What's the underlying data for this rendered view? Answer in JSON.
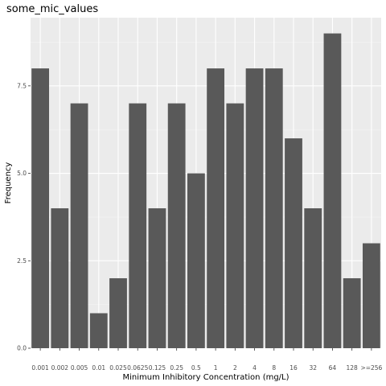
{
  "colors": {
    "panel": "#ebebeb",
    "grid_major": "#ffffff",
    "grid_minor": "#f5f5f5",
    "bar": "#595959",
    "tick": "#333333"
  },
  "chart_data": {
    "type": "bar",
    "title": "some_mic_values",
    "xlabel": "Minimum Inhibitory Concentration (mg/L)",
    "ylabel": "Frequency",
    "categories": [
      "0.001",
      "0.002",
      "0.005",
      "0.01",
      "0.025",
      "0.0625",
      "0.125",
      "0.25",
      "0.5",
      "1",
      "2",
      "4",
      "8",
      "16",
      "32",
      "64",
      "128",
      ">=256"
    ],
    "values": [
      8,
      4,
      7,
      1,
      2,
      7,
      4,
      7,
      5,
      8,
      7,
      8,
      8,
      6,
      4,
      9,
      2,
      3
    ],
    "ylim": [
      0,
      9.45
    ],
    "yticks": [
      0,
      2.5,
      5,
      7.5
    ],
    "ytick_labels": [
      "0.0",
      "2.5",
      "5.0",
      "7.5"
    ],
    "grid": true,
    "legend": "none"
  }
}
